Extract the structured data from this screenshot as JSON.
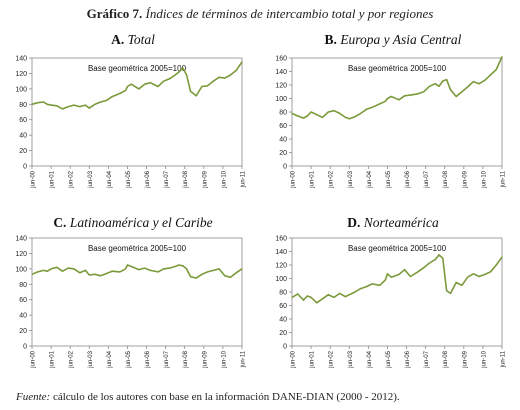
{
  "figure": {
    "title_lead": "Gráfico 7.",
    "title_rest": "Índices de términos de intercambio total y por regiones"
  },
  "source": {
    "label": "Fuente:",
    "text": "cálculo de los autores con base en la información  DANE-DIAN (2000 - 2012)."
  },
  "chart_data": [
    {
      "type": "line",
      "letter": "A.",
      "name": "Total",
      "annotation": "Base geométrica 2005=100",
      "ylim": [
        0,
        140
      ],
      "yticks": [
        0,
        20,
        40,
        60,
        80,
        100,
        120,
        140
      ],
      "xticks": [
        "jun-00",
        "jun-01",
        "jun-02",
        "jun-03",
        "jun-04",
        "jun-05",
        "jun-06",
        "jun-07",
        "jun-08",
        "jun-09",
        "jun-10",
        "jun-11"
      ],
      "line_color": "#7a9a3a",
      "grid": false,
      "x": [
        0,
        0.3,
        0.6,
        0.8,
        1.0,
        1.3,
        1.6,
        1.9,
        2.2,
        2.5,
        2.8,
        3.0,
        3.3,
        3.6,
        3.9,
        4.2,
        4.6,
        4.9,
        5.0,
        5.2,
        5.6,
        5.9,
        6.2,
        6.6,
        6.9,
        7.2,
        7.5,
        7.7,
        7.9,
        8.1,
        8.3,
        8.6,
        8.9,
        9.2,
        9.5,
        9.8,
        10.1,
        10.4,
        10.7,
        11.0
      ],
      "y": [
        80,
        82,
        83,
        80,
        79,
        78,
        74,
        77,
        79,
        77,
        79,
        75,
        80,
        83,
        85,
        90,
        94,
        98,
        103,
        106,
        100,
        106,
        108,
        103,
        110,
        113,
        118,
        122,
        127,
        118,
        97,
        91,
        103,
        104,
        110,
        115,
        114,
        118,
        124,
        135
      ]
    },
    {
      "type": "line",
      "letter": "B.",
      "name": "Europa y Asia Central",
      "annotation": "Base geométrica 2005=100",
      "ylim": [
        0,
        160
      ],
      "yticks": [
        0,
        20,
        40,
        60,
        80,
        100,
        120,
        140,
        160
      ],
      "xticks": [
        "jun-00",
        "jun-01",
        "jun-02",
        "jun-03",
        "jun-04",
        "jun-05",
        "jun-06",
        "jun-07",
        "jun-08",
        "jun-09",
        "jun-10",
        "jun-11"
      ],
      "line_color": "#7a9a3a",
      "grid": false,
      "x": [
        0,
        0.3,
        0.6,
        0.8,
        1.0,
        1.3,
        1.6,
        1.9,
        2.2,
        2.5,
        2.8,
        3.0,
        3.3,
        3.6,
        3.9,
        4.2,
        4.6,
        4.9,
        5.0,
        5.2,
        5.6,
        5.9,
        6.2,
        6.6,
        6.9,
        7.2,
        7.5,
        7.7,
        7.9,
        8.1,
        8.3,
        8.6,
        8.9,
        9.2,
        9.5,
        9.8,
        10.1,
        10.4,
        10.7,
        11.0
      ],
      "y": [
        78,
        74,
        71,
        74,
        80,
        76,
        72,
        80,
        82,
        78,
        72,
        70,
        73,
        78,
        84,
        87,
        92,
        96,
        100,
        103,
        98,
        104,
        105,
        107,
        110,
        118,
        122,
        118,
        126,
        128,
        113,
        103,
        110,
        117,
        125,
        122,
        127,
        135,
        143,
        162
      ]
    },
    {
      "type": "line",
      "letter": "C.",
      "name": "Latinoamérica y el Caribe",
      "annotation": "Base geométrica 2005=100",
      "ylim": [
        0,
        140
      ],
      "yticks": [
        0,
        20,
        40,
        60,
        80,
        100,
        120,
        140
      ],
      "xticks": [
        "jun-00",
        "jun-01",
        "jun-02",
        "jun-03",
        "jun-04",
        "jun-05",
        "jun-06",
        "jun-07",
        "jun-08",
        "jun-09",
        "jun-10",
        "jun-11"
      ],
      "line_color": "#7a9a3a",
      "grid": false,
      "x": [
        0,
        0.3,
        0.6,
        0.8,
        1.0,
        1.3,
        1.6,
        1.9,
        2.2,
        2.5,
        2.8,
        3.0,
        3.3,
        3.6,
        3.9,
        4.2,
        4.6,
        4.9,
        5.0,
        5.2,
        5.6,
        5.9,
        6.2,
        6.6,
        6.9,
        7.2,
        7.5,
        7.7,
        7.9,
        8.1,
        8.3,
        8.6,
        8.9,
        9.2,
        9.5,
        9.8,
        10.1,
        10.4,
        10.7,
        11.0
      ],
      "y": [
        93,
        96,
        98,
        97,
        100,
        102,
        97,
        101,
        100,
        95,
        98,
        92,
        93,
        91,
        94,
        97,
        96,
        100,
        105,
        103,
        99,
        101,
        98,
        96,
        100,
        101,
        103,
        105,
        104,
        100,
        90,
        88,
        93,
        96,
        98,
        100,
        91,
        89,
        95,
        100
      ]
    },
    {
      "type": "line",
      "letter": "D.",
      "name": "Norteamérica",
      "annotation": "Base geométrica 2005=100",
      "ylim": [
        0,
        160
      ],
      "yticks": [
        0,
        20,
        40,
        60,
        80,
        100,
        120,
        140,
        160
      ],
      "xticks": [
        "jun-00",
        "jun-01",
        "jun-02",
        "jun-03",
        "jun-04",
        "jun-05",
        "jun-06",
        "jun-07",
        "jun-08",
        "jun-09",
        "jun-10",
        "jun-11"
      ],
      "line_color": "#7a9a3a",
      "grid": false,
      "x": [
        0,
        0.3,
        0.6,
        0.8,
        1.0,
        1.3,
        1.6,
        1.9,
        2.2,
        2.5,
        2.8,
        3.0,
        3.3,
        3.6,
        3.9,
        4.2,
        4.6,
        4.9,
        5.0,
        5.2,
        5.6,
        5.9,
        6.2,
        6.6,
        6.9,
        7.2,
        7.5,
        7.7,
        7.9,
        8.1,
        8.3,
        8.6,
        8.9,
        9.2,
        9.5,
        9.8,
        10.1,
        10.4,
        10.7,
        11.0
      ],
      "y": [
        72,
        77,
        68,
        74,
        72,
        64,
        70,
        76,
        72,
        78,
        73,
        76,
        80,
        85,
        88,
        92,
        90,
        98,
        107,
        102,
        106,
        113,
        103,
        110,
        116,
        123,
        128,
        135,
        130,
        82,
        78,
        94,
        90,
        102,
        107,
        103,
        106,
        110,
        120,
        132
      ]
    }
  ]
}
